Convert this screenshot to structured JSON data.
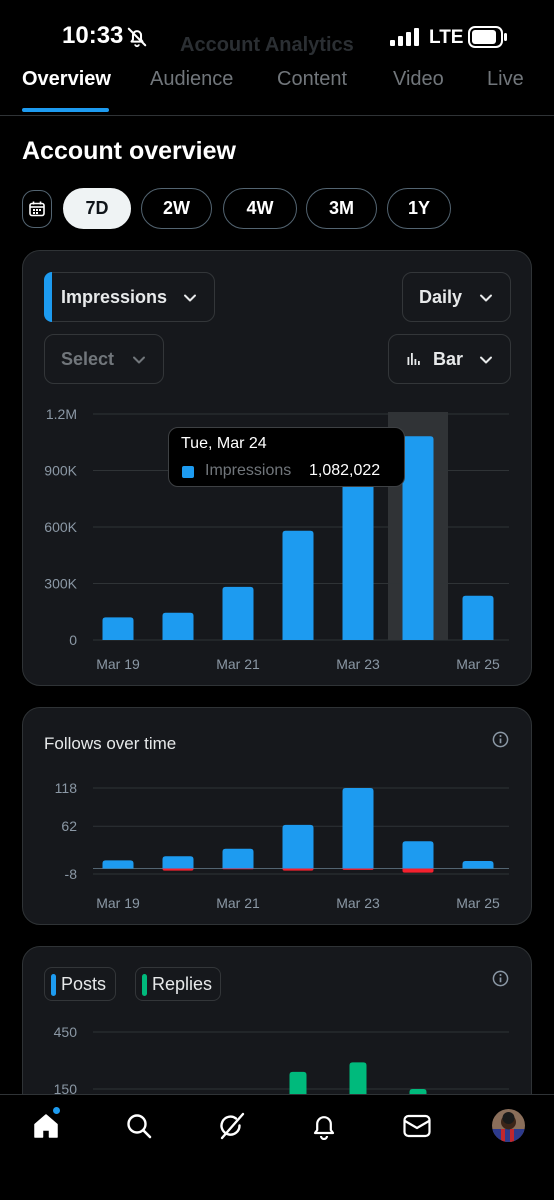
{
  "status_bar": {
    "time": "10:33",
    "network": "LTE"
  },
  "header": {
    "title": "Account Analytics"
  },
  "tabs": [
    {
      "label": "Overview",
      "active": true
    },
    {
      "label": "Audience",
      "active": false
    },
    {
      "label": "Content",
      "active": false
    },
    {
      "label": "Video",
      "active": false
    },
    {
      "label": "Live",
      "active": false
    }
  ],
  "section_title": "Account overview",
  "ranges": [
    {
      "label": "7D",
      "active": true
    },
    {
      "label": "2W",
      "active": false
    },
    {
      "label": "4W",
      "active": false
    },
    {
      "label": "3M",
      "active": false
    },
    {
      "label": "1Y",
      "active": false
    }
  ],
  "impressions_card": {
    "metric_dropdown": "Impressions",
    "interval_dropdown": "Daily",
    "compare_dropdown": "Select",
    "chart_type_dropdown": "Bar",
    "tooltip": {
      "date": "Tue, Mar 24",
      "label": "Impressions",
      "value": "1,082,022"
    }
  },
  "follows_card": {
    "title": "Follows over time"
  },
  "posts_card": {
    "legend": [
      "Posts",
      "Replies"
    ]
  },
  "colors": {
    "blue": "#1d9bf0",
    "red": "#f4212e",
    "green": "#00ba7c",
    "card": "#16181c"
  },
  "icons": {
    "nav": [
      "home-icon",
      "search-icon",
      "grok-icon",
      "notifications-icon",
      "messages-icon"
    ]
  },
  "chart_data": [
    {
      "type": "bar",
      "title": "",
      "categories": [
        "Mar 19",
        "Mar 20",
        "Mar 21",
        "Mar 22",
        "Mar 23",
        "Mar 24",
        "Mar 25"
      ],
      "x_tick_labels": [
        "Mar 19",
        "Mar 21",
        "Mar 23",
        "Mar 25"
      ],
      "series": [
        {
          "name": "Impressions",
          "values": [
            120000,
            145000,
            282000,
            580000,
            830000,
            1082022,
            235000
          ]
        }
      ],
      "ylim": [
        0,
        1200000
      ],
      "y_tick_labels": [
        "0",
        "300K",
        "600K",
        "900K",
        "1.2M"
      ],
      "y_ticks": [
        0,
        300000,
        600000,
        900000,
        1200000
      ],
      "highlighted_category": "Mar 24",
      "grid": true
    },
    {
      "type": "bar",
      "title": "Follows over time",
      "categories": [
        "Mar 19",
        "Mar 20",
        "Mar 21",
        "Mar 22",
        "Mar 23",
        "Mar 24",
        "Mar 25"
      ],
      "x_tick_labels": [
        "Mar 19",
        "Mar 21",
        "Mar 23",
        "Mar 25"
      ],
      "series": [
        {
          "values": [
            12,
            18,
            29,
            64,
            118,
            40,
            11
          ]
        },
        {
          "values": [
            0,
            -3,
            -1,
            -3,
            -2,
            -6,
            0
          ]
        }
      ],
      "ylim": [
        -8,
        118
      ],
      "y_tick_labels": [
        "-8",
        "62",
        "118"
      ],
      "y_ticks": [
        -8,
        62,
        118
      ],
      "grid": true
    },
    {
      "type": "bar",
      "title": "",
      "categories": [
        "Mar 19",
        "Mar 20",
        "Mar 21",
        "Mar 22",
        "Mar 23",
        "Mar 24",
        "Mar 25"
      ],
      "series": [
        {
          "name": "Posts",
          "values": [
            0,
            0,
            0,
            0,
            0,
            0,
            0
          ]
        },
        {
          "name": "Replies",
          "values": [
            0,
            0,
            120,
            240,
            290,
            150,
            0
          ]
        }
      ],
      "y_tick_labels": [
        "150",
        "450"
      ],
      "y_ticks": [
        150,
        450
      ],
      "grid": true
    }
  ]
}
